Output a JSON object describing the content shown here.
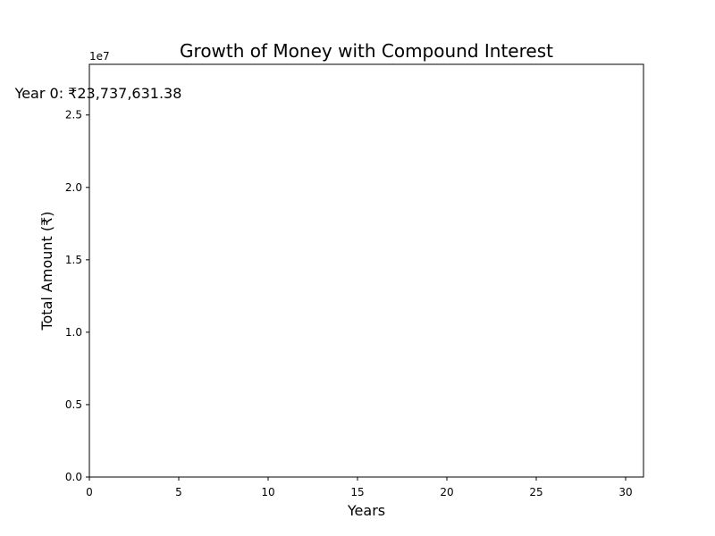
{
  "chart_data": {
    "type": "line",
    "title": "Growth of Money with Compound Interest",
    "xlabel": "Years",
    "ylabel": "Total Amount (₹)",
    "xlim": [
      0,
      31
    ],
    "ylim": [
      0,
      28500000
    ],
    "x_ticks": [
      0,
      5,
      10,
      15,
      20,
      25,
      30
    ],
    "x_tick_labels": [
      "0",
      "5",
      "10",
      "15",
      "20",
      "25",
      "30"
    ],
    "y_ticks": [
      0,
      5000000,
      10000000,
      15000000,
      20000000,
      25000000
    ],
    "y_tick_labels": [
      "0.0",
      "0.5",
      "1.0",
      "1.5",
      "2.0",
      "2.5"
    ],
    "y_offset_label": "1e7",
    "series": [],
    "annotation": "Year 0: ₹23,737,631.38",
    "grid": false,
    "legend": false
  }
}
